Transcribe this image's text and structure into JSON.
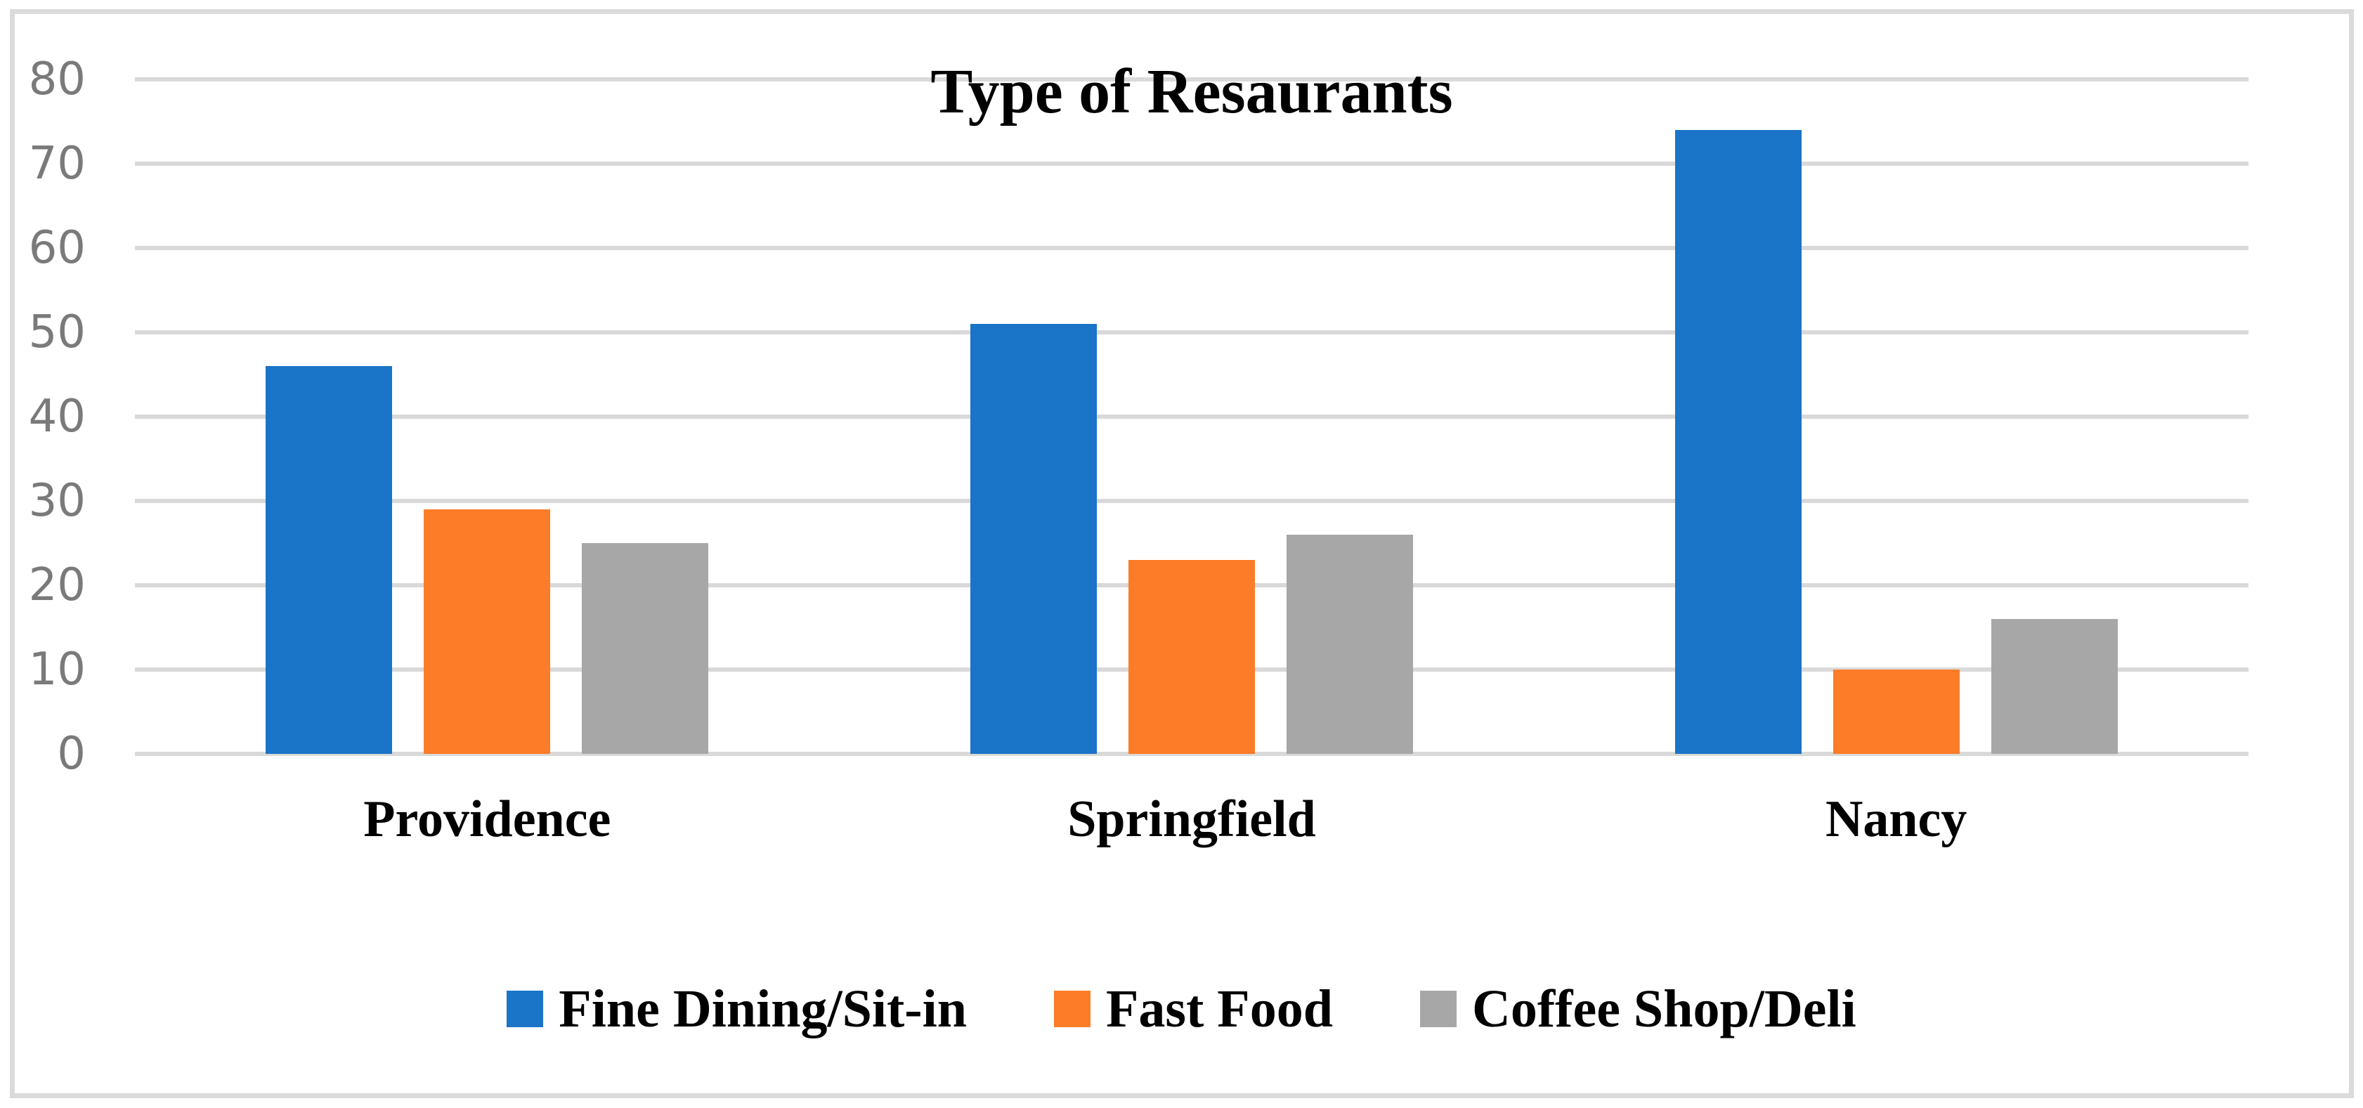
{
  "chart_data": {
    "type": "bar",
    "title": "Type of Resaurants",
    "categories": [
      "Providence",
      "Springfield",
      "Nancy"
    ],
    "series": [
      {
        "name": "Fine Dining/Sit-in",
        "color": "#1A74C7",
        "values": [
          46,
          51,
          74
        ]
      },
      {
        "name": "Fast Food",
        "color": "#FC7C27",
        "values": [
          29,
          23,
          10
        ]
      },
      {
        "name": "Coffee Shop/Deli",
        "color": "#A7A7A7",
        "values": [
          25,
          26,
          16
        ]
      }
    ],
    "xlabel": "",
    "ylabel": "",
    "ylim": [
      0,
      80
    ],
    "yticks": [
      0,
      10,
      20,
      30,
      40,
      50,
      60,
      70,
      80
    ],
    "grid": "horizontal",
    "legend_position": "bottom"
  },
  "colors": {
    "gridline": "#D9D9D9",
    "frame_border": "#DBDBDB",
    "tick_label": "#7A7A7A",
    "text": "#000000",
    "background": "#FFFFFF"
  }
}
